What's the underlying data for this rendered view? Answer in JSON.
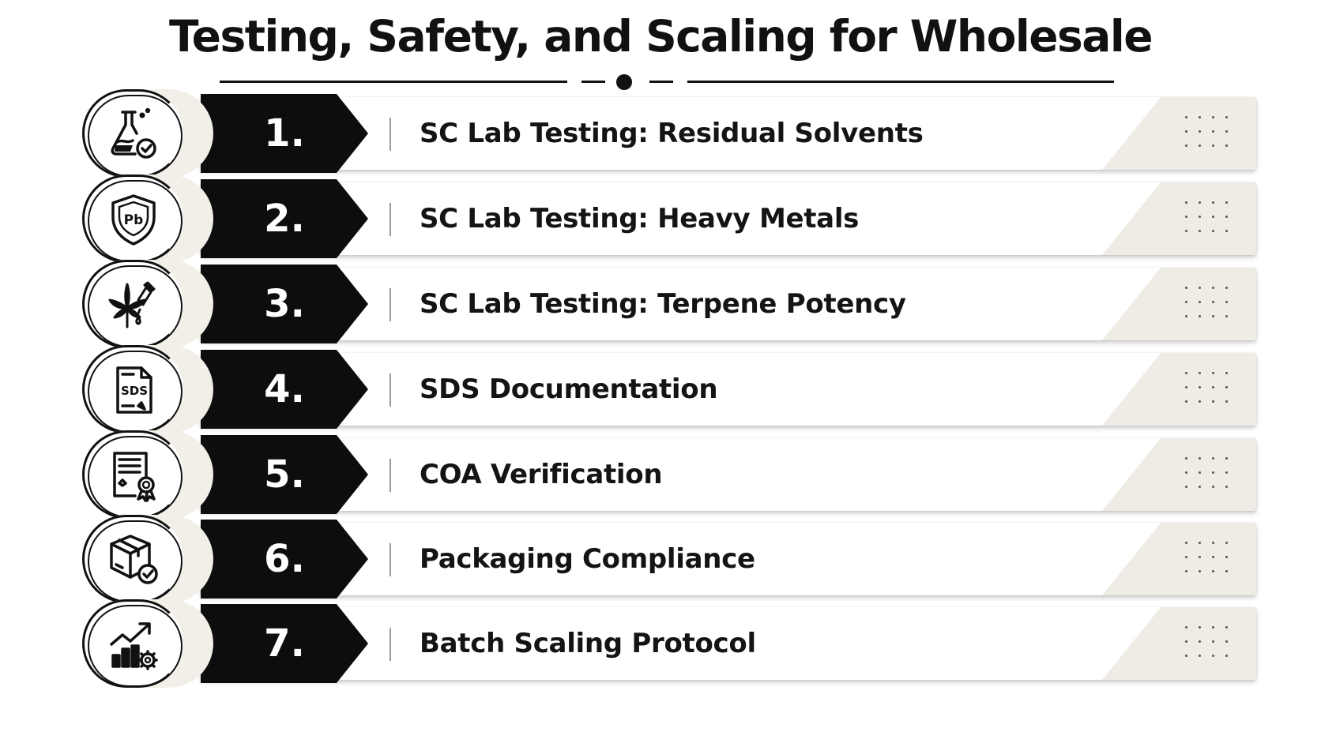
{
  "title": "Testing, Safety, and Scaling for Wholesale",
  "items": [
    {
      "number": "1.",
      "label": "SC Lab Testing: Residual Solvents",
      "icon": "flask-check-icon"
    },
    {
      "number": "2.",
      "label": "SC Lab Testing: Heavy Metals",
      "icon": "shield-pb-icon",
      "icon_text": "Pb"
    },
    {
      "number": "3.",
      "label": "SC Lab Testing: Terpene Potency",
      "icon": "leaf-dropper-icon"
    },
    {
      "number": "4.",
      "label": "SDS Documentation",
      "icon": "sds-document-icon",
      "icon_text": "SDS"
    },
    {
      "number": "5.",
      "label": "COA Verification",
      "icon": "certificate-icon"
    },
    {
      "number": "6.",
      "label": "Packaging Compliance",
      "icon": "box-check-icon"
    },
    {
      "number": "7.",
      "label": "Batch Scaling Protocol",
      "icon": "growth-chart-gear-icon"
    }
  ],
  "colors": {
    "badge": "#0d0d0d",
    "shade": "#efece5",
    "text": "#141414"
  }
}
